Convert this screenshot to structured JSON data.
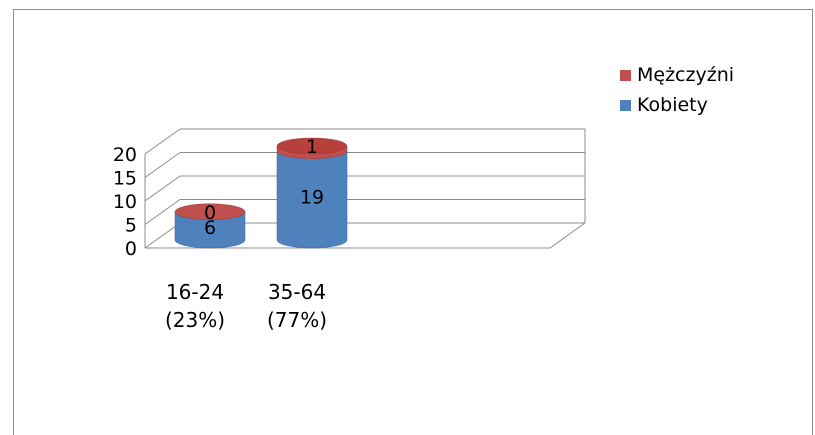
{
  "chart_data": {
    "type": "bar",
    "subtype": "stacked-3d-cylinder",
    "categories": [
      {
        "label": "16-24",
        "percent_label": "(23%)"
      },
      {
        "label": "35-64",
        "percent_label": "(77%)"
      }
    ],
    "series": [
      {
        "name": "Kobiety",
        "values": [
          6,
          19
        ],
        "color": "#4f81bd",
        "top_color": "#3f6ea8"
      },
      {
        "name": "Mężczyźni",
        "values": [
          0,
          1
        ],
        "color": "#c0504d",
        "top_color": "#b03a36"
      }
    ],
    "y_ticks": [
      "0",
      "5",
      "10",
      "15",
      "20"
    ],
    "ylim": [
      0,
      20
    ],
    "grid": true,
    "legend_position": "right"
  }
}
